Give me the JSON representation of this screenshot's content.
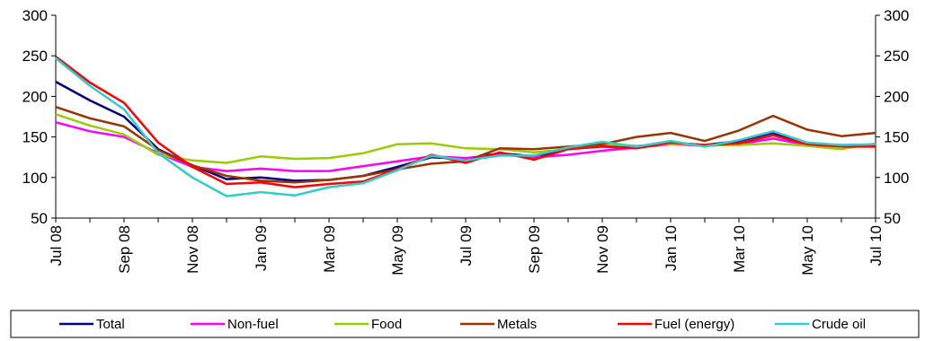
{
  "chart_data": {
    "type": "line",
    "title": "",
    "xlabel": "",
    "ylabel": "",
    "ylim": [
      50,
      300
    ],
    "yticks": [
      50,
      100,
      150,
      200,
      250,
      300
    ],
    "right_axis_ylim": [
      50,
      300
    ],
    "grid": false,
    "legend_position": "bottom",
    "x": [
      "Jul 08",
      "Aug 08",
      "Sep 08",
      "Oct 08",
      "Nov 08",
      "Dec 08",
      "Jan 09",
      "Feb 09",
      "Mar 09",
      "Apr 09",
      "May 09",
      "Jun 09",
      "Jul 09",
      "Aug 09",
      "Sep 09",
      "Oct 09",
      "Nov 09",
      "Dec 09",
      "Jan 10",
      "Feb 10",
      "Mar 10",
      "Apr 10",
      "May 10",
      "Jun 10",
      "Jul 10"
    ],
    "xticklabels": [
      "Jul 08",
      "Sep 08",
      "Nov 08",
      "Jan 09",
      "Mar 09",
      "May 09",
      "Jul 09",
      "Sep 09",
      "Nov 09",
      "Jan 10",
      "Mar 10",
      "May 10",
      "Jul 10"
    ],
    "series": [
      {
        "name": "Total",
        "color": "#000080",
        "values": [
          218,
          195,
          175,
          135,
          115,
          98,
          100,
          96,
          97,
          102,
          113,
          125,
          123,
          130,
          126,
          135,
          140,
          138,
          143,
          140,
          145,
          155,
          140,
          140,
          140
        ]
      },
      {
        "name": "Non-fuel",
        "color": "#ff00ff",
        "values": [
          168,
          157,
          150,
          130,
          113,
          108,
          111,
          108,
          108,
          114,
          120,
          126,
          124,
          128,
          125,
          128,
          133,
          137,
          141,
          139,
          141,
          148,
          140,
          139,
          141
        ]
      },
      {
        "name": "Food",
        "color": "#99cc00",
        "values": [
          178,
          164,
          153,
          128,
          121,
          118,
          126,
          123,
          124,
          130,
          141,
          142,
          136,
          135,
          131,
          135,
          141,
          139,
          141,
          140,
          140,
          142,
          139,
          135,
          142
        ]
      },
      {
        "name": "Metals",
        "color": "#993300",
        "values": [
          187,
          173,
          163,
          134,
          115,
          102,
          96,
          94,
          97,
          102,
          110,
          117,
          120,
          136,
          135,
          138,
          141,
          150,
          155,
          145,
          158,
          176,
          159,
          151,
          155
        ]
      },
      {
        "name": "Fuel (energy)",
        "color": "#ff0000",
        "values": [
          249,
          217,
          192,
          143,
          113,
          92,
          94,
          88,
          92,
          95,
          110,
          128,
          118,
          131,
          122,
          135,
          138,
          136,
          143,
          140,
          142,
          152,
          141,
          138,
          138
        ]
      },
      {
        "name": "Crude oil",
        "color": "#33cccc",
        "values": [
          247,
          213,
          184,
          130,
          100,
          77,
          82,
          78,
          88,
          93,
          109,
          127,
          121,
          127,
          127,
          137,
          144,
          138,
          145,
          138,
          146,
          157,
          143,
          140,
          141
        ]
      }
    ]
  }
}
